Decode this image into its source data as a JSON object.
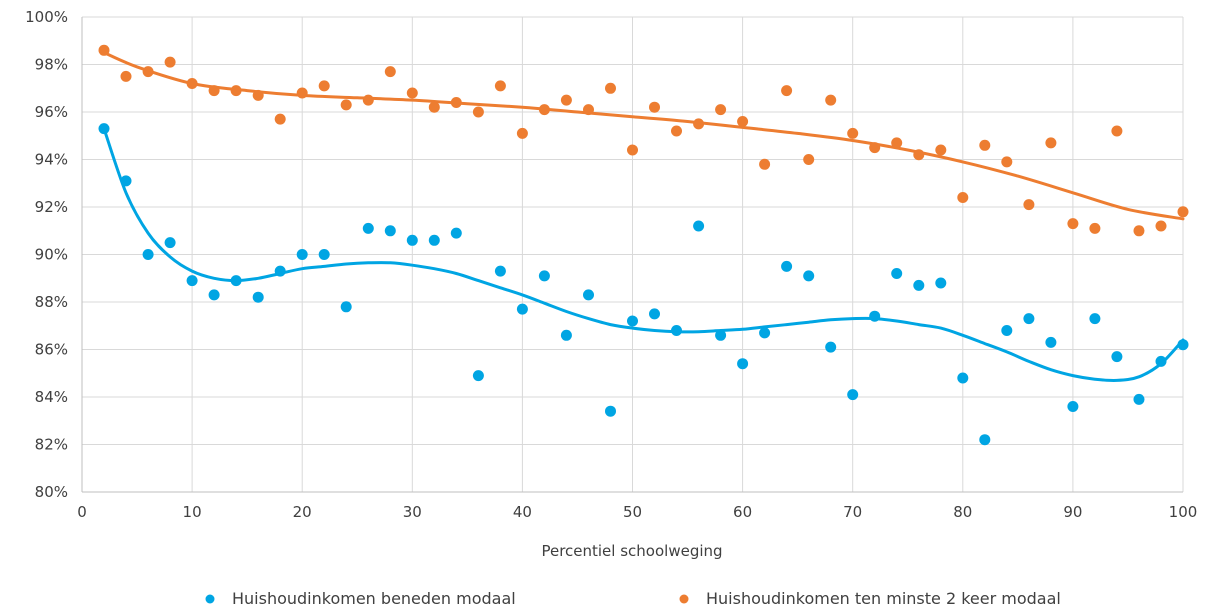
{
  "chart_data": {
    "type": "scatter",
    "title": "",
    "xlabel": "Percentiel schoolweging",
    "ylabel": "",
    "xlim": [
      0,
      100
    ],
    "ylim": [
      80,
      100
    ],
    "x_ticks": [
      "0",
      "10",
      "20",
      "30",
      "40",
      "50",
      "60",
      "70",
      "80",
      "90",
      "100"
    ],
    "y_ticks": [
      "80%",
      "82%",
      "84%",
      "86%",
      "88%",
      "90%",
      "92%",
      "94%",
      "96%",
      "98%",
      "100%"
    ],
    "grid": true,
    "legend_position": "bottom",
    "trendline": "polynomial",
    "series": [
      {
        "name": "Huishoudinkomen beneden modaal",
        "color": "#00a5e3",
        "points": [
          [
            2,
            95.3
          ],
          [
            4,
            93.1
          ],
          [
            6,
            90.0
          ],
          [
            8,
            90.5
          ],
          [
            10,
            88.9
          ],
          [
            12,
            88.3
          ],
          [
            14,
            88.9
          ],
          [
            16,
            88.2
          ],
          [
            18,
            89.3
          ],
          [
            20,
            90.0
          ],
          [
            22,
            90.0
          ],
          [
            24,
            87.8
          ],
          [
            26,
            91.1
          ],
          [
            28,
            91.0
          ],
          [
            30,
            90.6
          ],
          [
            32,
            90.6
          ],
          [
            34,
            90.9
          ],
          [
            36,
            84.9
          ],
          [
            38,
            89.3
          ],
          [
            40,
            87.7
          ],
          [
            42,
            89.1
          ],
          [
            44,
            86.6
          ],
          [
            46,
            88.3
          ],
          [
            48,
            83.4
          ],
          [
            50,
            87.2
          ],
          [
            52,
            87.5
          ],
          [
            54,
            86.8
          ],
          [
            56,
            91.2
          ],
          [
            58,
            86.6
          ],
          [
            60,
            85.4
          ],
          [
            62,
            86.7
          ],
          [
            64,
            89.5
          ],
          [
            66,
            89.1
          ],
          [
            68,
            86.1
          ],
          [
            70,
            84.1
          ],
          [
            72,
            87.4
          ],
          [
            74,
            89.2
          ],
          [
            76,
            88.7
          ],
          [
            78,
            88.8
          ],
          [
            80,
            84.8
          ],
          [
            82,
            82.2
          ],
          [
            84,
            86.8
          ],
          [
            86,
            87.3
          ],
          [
            88,
            86.3
          ],
          [
            90,
            83.6
          ],
          [
            92,
            87.3
          ],
          [
            94,
            85.7
          ],
          [
            96,
            83.9
          ],
          [
            98,
            85.5
          ],
          [
            100,
            86.2
          ]
        ],
        "trend": [
          [
            2,
            95.3
          ],
          [
            4,
            92.6
          ],
          [
            6,
            90.9
          ],
          [
            8,
            89.9
          ],
          [
            10,
            89.3
          ],
          [
            12,
            89.0
          ],
          [
            14,
            88.9
          ],
          [
            16,
            89.0
          ],
          [
            18,
            89.2
          ],
          [
            20,
            89.4
          ],
          [
            22,
            89.5
          ],
          [
            24,
            89.6
          ],
          [
            26,
            89.65
          ],
          [
            28,
            89.65
          ],
          [
            30,
            89.55
          ],
          [
            32,
            89.4
          ],
          [
            34,
            89.2
          ],
          [
            36,
            88.9
          ],
          [
            38,
            88.6
          ],
          [
            40,
            88.3
          ],
          [
            42,
            87.95
          ],
          [
            44,
            87.6
          ],
          [
            46,
            87.3
          ],
          [
            48,
            87.05
          ],
          [
            50,
            86.9
          ],
          [
            52,
            86.8
          ],
          [
            54,
            86.75
          ],
          [
            56,
            86.75
          ],
          [
            58,
            86.8
          ],
          [
            60,
            86.85
          ],
          [
            62,
            86.95
          ],
          [
            64,
            87.05
          ],
          [
            66,
            87.15
          ],
          [
            68,
            87.25
          ],
          [
            70,
            87.3
          ],
          [
            72,
            87.3
          ],
          [
            74,
            87.2
          ],
          [
            76,
            87.05
          ],
          [
            78,
            86.9
          ],
          [
            80,
            86.6
          ],
          [
            82,
            86.25
          ],
          [
            84,
            85.9
          ],
          [
            86,
            85.5
          ],
          [
            88,
            85.15
          ],
          [
            90,
            84.9
          ],
          [
            92,
            84.75
          ],
          [
            94,
            84.7
          ],
          [
            96,
            84.85
          ],
          [
            98,
            85.4
          ],
          [
            100,
            86.4
          ]
        ]
      },
      {
        "name": "Huishoudinkomen ten minste 2 keer modaal",
        "color": "#ed7d31",
        "points": [
          [
            2,
            98.6
          ],
          [
            4,
            97.5
          ],
          [
            6,
            97.7
          ],
          [
            8,
            98.1
          ],
          [
            10,
            97.2
          ],
          [
            12,
            96.9
          ],
          [
            14,
            96.9
          ],
          [
            16,
            96.7
          ],
          [
            18,
            95.7
          ],
          [
            20,
            96.8
          ],
          [
            22,
            97.1
          ],
          [
            24,
            96.3
          ],
          [
            26,
            96.5
          ],
          [
            28,
            97.7
          ],
          [
            30,
            96.8
          ],
          [
            32,
            96.2
          ],
          [
            34,
            96.4
          ],
          [
            36,
            96.0
          ],
          [
            38,
            97.1
          ],
          [
            40,
            95.1
          ],
          [
            42,
            96.1
          ],
          [
            44,
            96.5
          ],
          [
            46,
            96.1
          ],
          [
            48,
            97.0
          ],
          [
            50,
            94.4
          ],
          [
            52,
            96.2
          ],
          [
            54,
            95.2
          ],
          [
            56,
            95.5
          ],
          [
            58,
            96.1
          ],
          [
            60,
            95.6
          ],
          [
            62,
            93.8
          ],
          [
            64,
            96.9
          ],
          [
            66,
            94.0
          ],
          [
            68,
            96.5
          ],
          [
            70,
            95.1
          ],
          [
            72,
            94.5
          ],
          [
            74,
            94.7
          ],
          [
            76,
            94.2
          ],
          [
            78,
            94.4
          ],
          [
            80,
            92.4
          ],
          [
            82,
            94.6
          ],
          [
            84,
            93.9
          ],
          [
            86,
            92.1
          ],
          [
            88,
            94.7
          ],
          [
            90,
            91.3
          ],
          [
            92,
            91.1
          ],
          [
            94,
            95.2
          ],
          [
            96,
            91.0
          ],
          [
            98,
            91.2
          ],
          [
            100,
            91.8
          ]
        ],
        "trend": [
          [
            2,
            98.5
          ],
          [
            5,
            97.9
          ],
          [
            10,
            97.2
          ],
          [
            15,
            96.9
          ],
          [
            20,
            96.7
          ],
          [
            25,
            96.6
          ],
          [
            30,
            96.5
          ],
          [
            35,
            96.35
          ],
          [
            40,
            96.2
          ],
          [
            45,
            96.0
          ],
          [
            50,
            95.8
          ],
          [
            55,
            95.6
          ],
          [
            60,
            95.35
          ],
          [
            65,
            95.1
          ],
          [
            70,
            94.8
          ],
          [
            75,
            94.4
          ],
          [
            80,
            93.9
          ],
          [
            85,
            93.3
          ],
          [
            90,
            92.6
          ],
          [
            95,
            91.9
          ],
          [
            100,
            91.5
          ]
        ]
      }
    ]
  }
}
